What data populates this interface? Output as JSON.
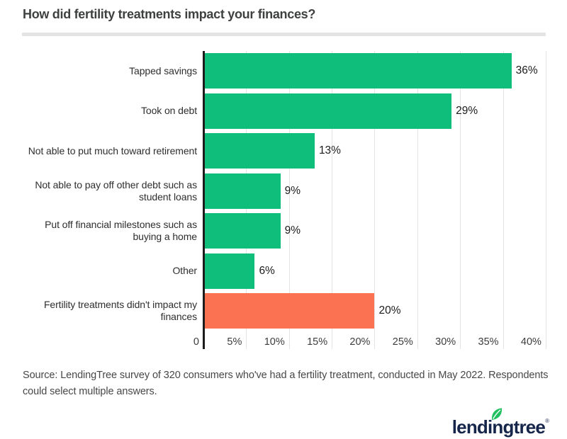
{
  "header": {
    "title": "How did fertility treatments impact your finances?"
  },
  "chart_data": {
    "type": "bar",
    "orientation": "horizontal",
    "title": "How did fertility treatments impact your finances?",
    "categories": [
      "Tapped savings",
      "Took on debt",
      "Not able to put much toward retirement",
      "Not able to pay off other debt such as student loans",
      "Put off financial milestones such as buying a home",
      "Other",
      "Fertility treatments didn't impact my finances"
    ],
    "values": [
      36,
      29,
      13,
      9,
      9,
      6,
      20
    ],
    "value_labels": [
      "36%",
      "29%",
      "13%",
      "9%",
      "9%",
      "6%",
      "20%"
    ],
    "bar_colors": [
      "#0fbe7b",
      "#0fbe7b",
      "#0fbe7b",
      "#0fbe7b",
      "#0fbe7b",
      "#0fbe7b",
      "#fb7253"
    ],
    "x_ticks": [
      0,
      5,
      10,
      15,
      20,
      25,
      30,
      35,
      40
    ],
    "x_tick_labels": [
      "0",
      "5%",
      "10%",
      "15%",
      "20%",
      "25%",
      "30%",
      "35%",
      "40%"
    ],
    "xlim": [
      0,
      41
    ],
    "grid": "vertical",
    "legend": "none",
    "colors": {
      "primary": "#0fbe7b",
      "highlight": "#fb7253",
      "gridline": "#e4e4e6",
      "axis": "#1c1c1c"
    }
  },
  "footer": {
    "source": "Source: LendingTree survey of 320 consumers who've had a fertility treatment, conducted in May 2022. Respondents could select multiple answers."
  },
  "logo": {
    "text": "lendingtree",
    "reg": "®",
    "icon": "leaf-icon",
    "navy": "#16254a",
    "leaf_green": "#21c161"
  }
}
